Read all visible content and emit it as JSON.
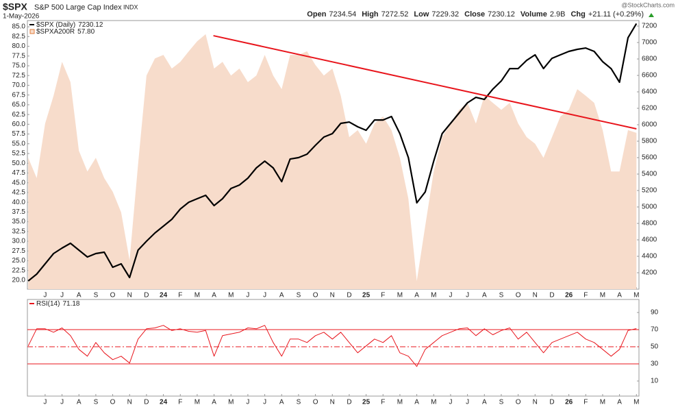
{
  "header": {
    "symbol": "$SPX",
    "name": "S&P 500 Large Cap Index",
    "exchange": "INDX",
    "date": "1-May-2026",
    "quote": [
      {
        "label": "Open",
        "value": 7234.54
      },
      {
        "label": "High",
        "value": 7272.52
      },
      {
        "label": "Low",
        "value": 7229.32
      },
      {
        "label": "Close",
        "value": 7230.12
      },
      {
        "label": "Volume",
        "value": "2.9B"
      },
      {
        "label": "Chg",
        "value": "+21.11 (+0.29%)"
      }
    ],
    "watermark": "@StockCharts.com"
  },
  "chart_data": [
    {
      "type": "line",
      "x": [
        -1,
        -0.5,
        0,
        0.5,
        1,
        1.5,
        2,
        2.5,
        3,
        3.5,
        4,
        4.5,
        5,
        5.5,
        6,
        6.5,
        7,
        7.5,
        8,
        8.5,
        9,
        9.5,
        10,
        10.5,
        11,
        11.5,
        12,
        12.5,
        13,
        13.5,
        14,
        14.5,
        15,
        15.5,
        16,
        16.5,
        17,
        17.5,
        18,
        18.5,
        19,
        19.5,
        20,
        20.5,
        21,
        21.5,
        22,
        22.5,
        23,
        23.5,
        24,
        24.5,
        25,
        25.5,
        26,
        26.5,
        27,
        27.5,
        28,
        28.5,
        29,
        29.5,
        30,
        30.5,
        31,
        31.5,
        32,
        32.5,
        33,
        33.5,
        34,
        34.5,
        35
      ],
      "xlim": [
        -1.05,
        35.15
      ],
      "xticks": [
        {
          "value": 0,
          "label": "J"
        },
        {
          "value": 1,
          "label": "J"
        },
        {
          "value": 2,
          "label": "A"
        },
        {
          "value": 3,
          "label": "S"
        },
        {
          "value": 4,
          "label": "O"
        },
        {
          "value": 5,
          "label": "N"
        },
        {
          "value": 6,
          "label": "D"
        },
        {
          "value": 7,
          "label": "24"
        },
        {
          "value": 8,
          "label": "F"
        },
        {
          "value": 9,
          "label": "M"
        },
        {
          "value": 10,
          "label": "A"
        },
        {
          "value": 11,
          "label": "M"
        },
        {
          "value": 12,
          "label": "J"
        },
        {
          "value": 13,
          "label": "J"
        },
        {
          "value": 14,
          "label": "A"
        },
        {
          "value": 15,
          "label": "S"
        },
        {
          "value": 16,
          "label": "O"
        },
        {
          "value": 17,
          "label": "N"
        },
        {
          "value": 18,
          "label": "D"
        },
        {
          "value": 19,
          "label": "25"
        },
        {
          "value": 20,
          "label": "F"
        },
        {
          "value": 21,
          "label": "M"
        },
        {
          "value": 22,
          "label": "A"
        },
        {
          "value": 23,
          "label": "M"
        },
        {
          "value": 24,
          "label": "J"
        },
        {
          "value": 25,
          "label": "J"
        },
        {
          "value": 26,
          "label": "A"
        },
        {
          "value": 27,
          "label": "S"
        },
        {
          "value": 28,
          "label": "O"
        },
        {
          "value": 29,
          "label": "N"
        },
        {
          "value": 30,
          "label": "D"
        },
        {
          "value": 31,
          "label": "26"
        },
        {
          "value": 32,
          "label": "F"
        },
        {
          "value": 33,
          "label": "M"
        },
        {
          "value": 34,
          "label": "A"
        },
        {
          "value": 35,
          "label": "M"
        }
      ],
      "ylim": [
        17.7,
        86.6
      ],
      "yticks": [
        {
          "value": 20,
          "label": "20.0"
        },
        22.5,
        {
          "value": 25,
          "label": "25.0"
        },
        27.5,
        {
          "value": 30,
          "label": "30.0"
        },
        32.5,
        {
          "value": 35,
          "label": "35.0"
        },
        37.5,
        {
          "value": 40,
          "label": "40.0"
        },
        42.5,
        {
          "value": 45,
          "label": "45.0"
        },
        47.5,
        {
          "value": 50,
          "label": "50.0"
        },
        52.5,
        {
          "value": 55,
          "label": "55.0"
        },
        57.5,
        {
          "value": 60,
          "label": "60.0"
        },
        62.5,
        {
          "value": 65,
          "label": "65.0"
        },
        67.5,
        {
          "value": 70,
          "label": "70.0"
        },
        72.5,
        {
          "value": 75,
          "label": "75.0"
        },
        77.5,
        {
          "value": 80,
          "label": "80.0"
        },
        82.5,
        {
          "value": 85,
          "label": "85.0"
        }
      ],
      "y2lim": [
        4000,
        7267
      ],
      "y2ticks": [
        4200,
        4400,
        4600,
        4800,
        5000,
        5200,
        5400,
        5600,
        5800,
        6000,
        6200,
        6400,
        6600,
        6800,
        7000,
        7200
      ],
      "series": [
        {
          "name": "$SPXA200R",
          "last_label": "57.80",
          "color": "#f7dccb",
          "label_color": "#e07b39",
          "fill": true,
          "values": [
            51.4,
            46.2,
            60.2,
            67.3,
            76.0,
            70.8,
            53.2,
            47.9,
            51.4,
            46.2,
            42.7,
            37.4,
            25.1,
            49.7,
            72.5,
            76.9,
            77.8,
            74.3,
            76.0,
            78.7,
            81.3,
            83.1,
            74.3,
            76.0,
            72.5,
            74.3,
            70.8,
            72.5,
            77.8,
            72.5,
            69.0,
            77.8,
            77.8,
            78.7,
            75.2,
            72.5,
            74.3,
            67.3,
            56.7,
            58.5,
            55.0,
            60.2,
            62.0,
            58.5,
            51.4,
            40.9,
            19.8,
            33.9,
            47.9,
            56.7,
            60.2,
            63.7,
            65.5,
            60.2,
            67.3,
            65.5,
            63.7,
            65.5,
            60.2,
            56.7,
            55.0,
            51.4,
            56.7,
            62.0,
            63.7,
            69.0,
            67.3,
            65.5,
            58.5,
            47.9,
            47.9,
            58.5,
            57.8
          ]
        },
        {
          "name": "$SPX (Daily)",
          "color": "#000000",
          "axis": "y2",
          "values": [
            4100,
            4183,
            4308,
            4433,
            4500,
            4558,
            4475,
            4392,
            4433,
            4450,
            4267,
            4308,
            4142,
            4475,
            4583,
            4683,
            4767,
            4850,
            4975,
            5058,
            5100,
            5142,
            5017,
            5100,
            5225,
            5267,
            5350,
            5475,
            5558,
            5475,
            5308,
            5583,
            5600,
            5642,
            5750,
            5850,
            5892,
            6017,
            6033,
            5975,
            5933,
            6058,
            6058,
            6100,
            5892,
            5600,
            5050,
            5183,
            5558,
            5892,
            6017,
            6142,
            6267,
            6333,
            6308,
            6433,
            6533,
            6683,
            6683,
            6783,
            6850,
            6683,
            6808,
            6850,
            6892,
            6917,
            6933,
            6892,
            6767,
            6683,
            6517,
            7058,
            7230.12
          ]
        }
      ],
      "annotations": [
        {
          "type": "trendline",
          "x": [
            9.96,
            35
          ],
          "y": [
            7083,
            5950
          ],
          "axis": "y2",
          "color": "#e8141b"
        }
      ]
    },
    {
      "type": "line",
      "x": [
        -1,
        -0.5,
        0,
        0.5,
        1,
        1.5,
        2,
        2.5,
        3,
        3.5,
        4,
        4.5,
        5,
        5.5,
        6,
        6.5,
        7,
        7.5,
        8,
        8.5,
        9,
        9.5,
        10,
        10.5,
        11,
        11.5,
        12,
        12.5,
        13,
        13.5,
        14,
        14.5,
        15,
        15.5,
        16,
        16.5,
        17,
        17.5,
        18,
        18.5,
        19,
        19.5,
        20,
        20.5,
        21,
        21.5,
        22,
        22.5,
        23,
        23.5,
        24,
        24.5,
        25,
        25.5,
        26,
        26.5,
        27,
        27.5,
        28,
        28.5,
        29,
        29.5,
        30,
        30.5,
        31,
        31.5,
        32,
        32.5,
        33,
        33.5,
        34,
        34.5,
        35
      ],
      "xlim": [
        -1.05,
        35.15
      ],
      "ylim": [
        -7.6,
        105.2
      ],
      "yticks": [
        10,
        30,
        50,
        70,
        90
      ],
      "hlines": [
        {
          "value": 70,
          "style": "solid"
        },
        {
          "value": 50,
          "style": "dashdot"
        },
        {
          "value": 30,
          "style": "solid"
        }
      ],
      "series": [
        {
          "name": "RSI(14)",
          "color": "#e8141b",
          "values": [
            51,
            71,
            71,
            67,
            72,
            63,
            47,
            39,
            55,
            43,
            35,
            39,
            31,
            59,
            71,
            72,
            75,
            69,
            71,
            68,
            67,
            69,
            39,
            63,
            65,
            67,
            72,
            71,
            75,
            55,
            39,
            59,
            59,
            55,
            63,
            67,
            59,
            67,
            55,
            43,
            51,
            59,
            55,
            63,
            43,
            39,
            27,
            47,
            55,
            63,
            67,
            71,
            72,
            63,
            71,
            64,
            69,
            72,
            59,
            67,
            55,
            43,
            55,
            59,
            63,
            67,
            59,
            55,
            47,
            39,
            47,
            69,
            71.18
          ]
        }
      ]
    }
  ]
}
